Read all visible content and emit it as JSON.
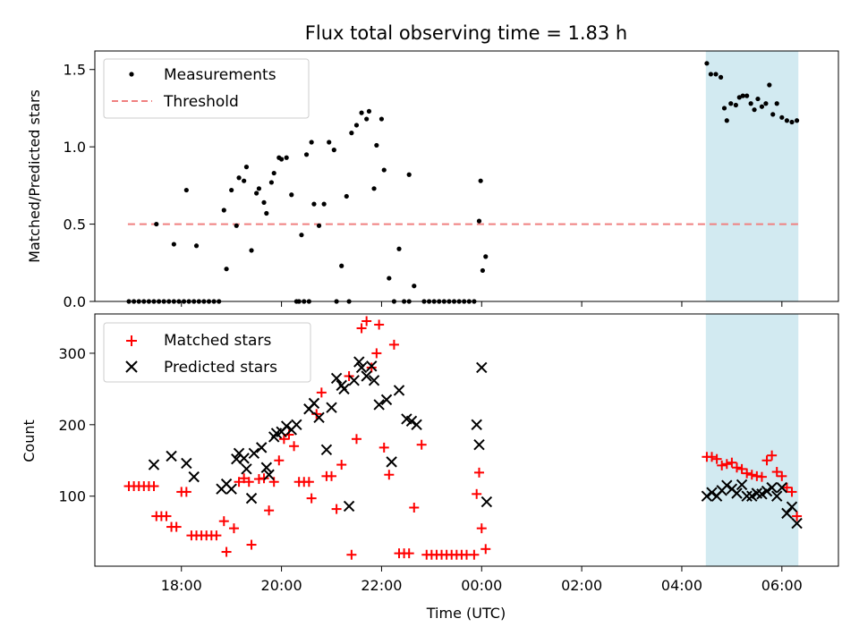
{
  "chart_data": [
    {
      "type": "scatter",
      "title": "Flux total observing time = 1.83 h",
      "xlabel": "",
      "ylabel": "Matched/Predicted stars",
      "xlim": [
        16.27,
        31.13
      ],
      "ylim": [
        0,
        1.62
      ],
      "yticks": [
        0,
        0.5,
        1.0,
        1.5
      ],
      "ytick_labels": [
        "0.0",
        "0.5",
        "1.0",
        "1.5"
      ],
      "grid": false,
      "legend": "top-left",
      "legend_entries": [
        "Measurements",
        "Threshold"
      ],
      "threshold": {
        "name": "Threshold",
        "y": 0.5,
        "x_start": 16.93,
        "x_end": 30.33,
        "color": "#f08080"
      },
      "shaded_region": {
        "x_start": 28.48,
        "x_end": 30.33,
        "color": "#add8e6"
      },
      "series": [
        {
          "name": "Measurements",
          "color": "#000000",
          "x": [
            16.95,
            17.05,
            17.15,
            17.25,
            17.35,
            17.45,
            17.55,
            17.65,
            17.75,
            17.85,
            17.95,
            18.05,
            18.15,
            18.25,
            18.35,
            18.45,
            18.55,
            18.65,
            18.75,
            17.5,
            17.85,
            18.1,
            18.3,
            18.85,
            18.9,
            19.0,
            19.1,
            19.15,
            19.25,
            19.3,
            19.4,
            19.5,
            19.55,
            19.65,
            19.7,
            19.8,
            19.85,
            19.95,
            20.0,
            20.1,
            20.2,
            20.3,
            20.4,
            20.5,
            20.6,
            20.65,
            20.75,
            20.85,
            20.95,
            21.05,
            21.1,
            21.2,
            21.3,
            21.4,
            21.5,
            21.6,
            21.7,
            21.75,
            21.85,
            21.9,
            22.0,
            22.05,
            22.15,
            22.25,
            22.35,
            22.55,
            22.65,
            20.35,
            20.45,
            20.55,
            21.35,
            22.45,
            22.55,
            22.85,
            22.95,
            23.05,
            23.15,
            23.25,
            23.35,
            23.45,
            23.55,
            23.65,
            23.75,
            23.85,
            23.95,
            23.98,
            24.02,
            24.08,
            28.5,
            28.58,
            28.68,
            28.78,
            28.85,
            28.9,
            28.98,
            29.08,
            29.15,
            29.22,
            29.3,
            29.38,
            29.45,
            29.52,
            29.6,
            29.68,
            29.75,
            29.82,
            29.9,
            30.0,
            30.1,
            30.2,
            30.3
          ],
          "y": [
            0,
            0,
            0,
            0,
            0,
            0,
            0,
            0,
            0,
            0,
            0,
            0,
            0,
            0,
            0,
            0,
            0,
            0,
            0,
            0.5,
            0.37,
            0.72,
            0.36,
            0.59,
            0.21,
            0.72,
            0.49,
            0.8,
            0.78,
            0.87,
            0.33,
            0.7,
            0.73,
            0.64,
            0.57,
            0.77,
            0.83,
            0.93,
            0.92,
            0.93,
            0.69,
            0,
            0.43,
            0.95,
            1.03,
            0.63,
            0.49,
            0.63,
            1.03,
            0.98,
            0,
            0.23,
            0.68,
            1.09,
            1.14,
            1.22,
            1.18,
            1.23,
            0.73,
            1.01,
            1.18,
            0.85,
            0.15,
            0,
            0.34,
            0.82,
            0.1,
            0,
            0,
            0,
            0,
            0,
            0,
            0,
            0,
            0,
            0,
            0,
            0,
            0,
            0,
            0,
            0,
            0,
            0.52,
            0.78,
            0.2,
            0.29,
            1.54,
            1.47,
            1.47,
            1.45,
            1.25,
            1.17,
            1.28,
            1.27,
            1.32,
            1.33,
            1.33,
            1.28,
            1.24,
            1.31,
            1.26,
            1.28,
            1.4,
            1.21,
            1.28,
            1.19,
            1.17,
            1.16,
            1.17
          ]
        }
      ]
    },
    {
      "type": "scatter",
      "title": "",
      "xlabel": "Time (UTC)",
      "ylabel": "Count",
      "xlim": [
        16.27,
        31.13
      ],
      "ylim": [
        2,
        355
      ],
      "yticks": [
        100,
        200,
        300
      ],
      "ytick_labels": [
        "100",
        "200",
        "300"
      ],
      "xticks": [
        18,
        20,
        22,
        24,
        26,
        28,
        30
      ],
      "xtick_labels": [
        "18:00",
        "20:00",
        "22:00",
        "00:00",
        "02:00",
        "04:00",
        "06:00"
      ],
      "grid": false,
      "legend": "top-left",
      "legend_entries": [
        "Matched stars",
        "Predicted stars"
      ],
      "shaded_region": {
        "x_start": 28.48,
        "x_end": 30.33,
        "color": "#add8e6"
      },
      "series": [
        {
          "name": "Matched stars",
          "color": "#ff0000",
          "marker": "plus",
          "x": [
            16.95,
            17.05,
            17.15,
            17.25,
            17.35,
            17.45,
            17.5,
            17.6,
            17.7,
            17.8,
            17.9,
            18.0,
            18.1,
            18.2,
            18.3,
            18.4,
            18.5,
            18.6,
            18.7,
            18.85,
            18.9,
            19.05,
            19.15,
            19.25,
            19.35,
            19.4,
            19.55,
            19.65,
            19.75,
            19.85,
            19.95,
            20.05,
            20.15,
            20.25,
            20.35,
            20.45,
            20.55,
            20.6,
            20.7,
            20.8,
            20.9,
            21.0,
            21.1,
            21.2,
            21.35,
            21.4,
            21.5,
            21.6,
            21.7,
            21.8,
            21.9,
            21.95,
            22.05,
            22.15,
            22.25,
            22.35,
            22.45,
            22.55,
            22.65,
            22.8,
            22.9,
            23.0,
            23.1,
            23.2,
            23.3,
            23.4,
            23.5,
            23.6,
            23.7,
            23.85,
            23.9,
            23.95,
            24.0,
            24.08,
            28.5,
            28.6,
            28.7,
            28.8,
            28.9,
            29.0,
            29.1,
            29.2,
            29.3,
            29.4,
            29.5,
            29.6,
            29.7,
            29.8,
            29.9,
            30.0,
            30.1,
            30.2,
            30.3
          ],
          "y": [
            114,
            114,
            114,
            114,
            114,
            114,
            72,
            72,
            72,
            57,
            57,
            106,
            106,
            45,
            45,
            45,
            45,
            45,
            45,
            65,
            22,
            55,
            120,
            125,
            120,
            32,
            124,
            125,
            80,
            120,
            150,
            180,
            186,
            170,
            120,
            120,
            120,
            97,
            215,
            245,
            128,
            128,
            82,
            144,
            268,
            18,
            180,
            335,
            345,
            280,
            300,
            340,
            168,
            130,
            312,
            20,
            20,
            20,
            84,
            172,
            18,
            18,
            18,
            18,
            18,
            18,
            18,
            18,
            18,
            18,
            103,
            133,
            55,
            26,
            155,
            155,
            152,
            143,
            145,
            147,
            140,
            138,
            132,
            130,
            128,
            127,
            150,
            157,
            134,
            128,
            112,
            106,
            72
          ]
        },
        {
          "name": "Predicted stars",
          "color": "#000000",
          "marker": "x",
          "x": [
            17.45,
            17.8,
            18.1,
            18.25,
            18.8,
            18.9,
            19.0,
            19.1,
            19.15,
            19.25,
            19.3,
            19.4,
            19.45,
            19.6,
            19.7,
            19.75,
            19.85,
            19.9,
            20.0,
            20.1,
            20.2,
            20.3,
            20.55,
            20.65,
            20.75,
            20.9,
            21.0,
            21.1,
            21.2,
            21.25,
            21.35,
            21.45,
            21.55,
            21.6,
            21.7,
            21.8,
            21.85,
            21.95,
            22.1,
            22.2,
            22.35,
            22.5,
            22.6,
            22.7,
            23.9,
            23.95,
            24.0,
            24.1,
            28.5,
            28.6,
            28.7,
            28.8,
            28.9,
            29.0,
            29.1,
            29.2,
            29.3,
            29.4,
            29.5,
            29.6,
            29.7,
            29.8,
            29.9,
            30.0,
            30.1,
            30.2,
            30.3
          ],
          "y": [
            144,
            156,
            146,
            127,
            110,
            117,
            110,
            152,
            160,
            153,
            138,
            97,
            160,
            168,
            140,
            130,
            183,
            188,
            190,
            198,
            193,
            200,
            222,
            230,
            210,
            165,
            224,
            265,
            255,
            250,
            86,
            262,
            288,
            280,
            268,
            282,
            262,
            228,
            235,
            148,
            248,
            208,
            205,
            200,
            200,
            172,
            280,
            92,
            100,
            105,
            100,
            108,
            115,
            110,
            104,
            116,
            100,
            100,
            104,
            103,
            107,
            112,
            100,
            112,
            76,
            85,
            62
          ]
        }
      ]
    }
  ]
}
